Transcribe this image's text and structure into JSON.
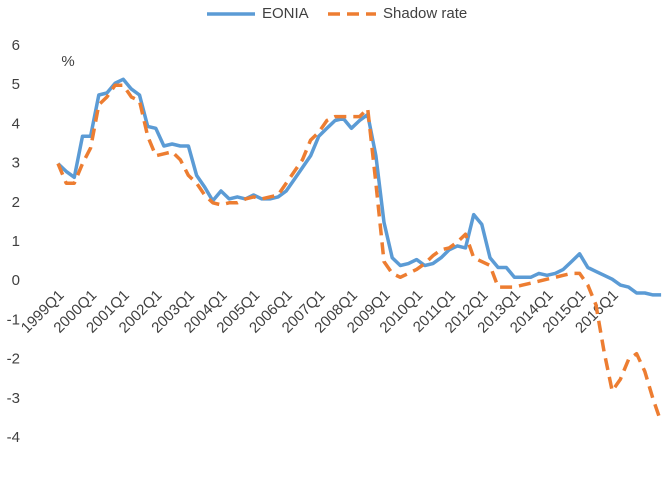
{
  "chart_data": {
    "type": "line",
    "y_axis_label": "%",
    "categories": [
      "1999Q1",
      null,
      null,
      null,
      "2000Q1",
      null,
      null,
      null,
      "2001Q1",
      null,
      null,
      null,
      "2002Q1",
      null,
      null,
      null,
      "2003Q1",
      null,
      null,
      null,
      "2004Q1",
      null,
      null,
      null,
      "2005Q1",
      null,
      null,
      null,
      "2006Q1",
      null,
      null,
      null,
      "2007Q1",
      null,
      null,
      null,
      "2008Q1",
      null,
      null,
      null,
      "2009Q1",
      null,
      null,
      null,
      "2010Q1",
      null,
      null,
      null,
      "2011Q1",
      null,
      null,
      null,
      "2012Q1",
      null,
      null,
      null,
      "2013Q1",
      null,
      null,
      null,
      "2014Q1",
      null,
      null,
      null,
      "2015Q1",
      null,
      null,
      null,
      "2016Q1",
      null,
      null,
      null,
      null,
      null,
      null
    ],
    "series": [
      {
        "name": "EONIA",
        "color": "#5b9bd5",
        "dashed": false,
        "values": [
          3.0,
          2.8,
          2.65,
          3.7,
          3.7,
          4.75,
          4.8,
          5.05,
          5.15,
          4.9,
          4.75,
          3.95,
          3.9,
          3.45,
          3.5,
          3.45,
          3.45,
          2.7,
          2.4,
          2.05,
          2.3,
          2.1,
          2.15,
          2.1,
          2.2,
          2.1,
          2.1,
          2.15,
          2.3,
          2.6,
          2.9,
          3.2,
          3.7,
          3.9,
          4.1,
          4.15,
          3.9,
          4.1,
          4.25,
          3.2,
          1.5,
          0.6,
          0.4,
          0.45,
          0.55,
          0.4,
          0.45,
          0.6,
          0.8,
          0.9,
          0.85,
          1.7,
          1.45,
          0.6,
          0.35,
          0.35,
          0.1,
          0.1,
          0.1,
          0.2,
          0.15,
          0.2,
          0.3,
          0.5,
          0.7,
          0.35,
          0.25,
          0.15,
          0.05,
          -0.1,
          -0.15,
          -0.3,
          -0.3,
          -0.35,
          -0.35
        ]
      },
      {
        "name": "Shadow rate",
        "color": "#ed7d31",
        "dashed": true,
        "values": [
          3.0,
          2.5,
          2.5,
          3.0,
          3.4,
          4.5,
          4.7,
          5.0,
          5.0,
          4.7,
          4.6,
          3.7,
          3.2,
          3.25,
          3.3,
          3.1,
          2.7,
          2.5,
          2.2,
          2.0,
          1.95,
          2.0,
          2.0,
          2.1,
          2.15,
          2.1,
          2.15,
          2.2,
          2.5,
          2.8,
          3.1,
          3.6,
          3.8,
          4.1,
          4.2,
          4.2,
          4.2,
          4.2,
          4.4,
          2.5,
          0.5,
          0.2,
          0.1,
          0.2,
          0.3,
          0.45,
          0.65,
          0.8,
          0.85,
          1.0,
          1.2,
          0.6,
          0.5,
          0.4,
          -0.15,
          -0.15,
          -0.15,
          -0.1,
          -0.05,
          0.0,
          0.05,
          0.1,
          0.15,
          0.2,
          0.2,
          -0.1,
          -0.6,
          -1.8,
          -2.8,
          -2.5,
          -2.0,
          -1.85,
          -2.3,
          -3.0,
          -3.6
        ]
      }
    ],
    "ylim": [
      -4,
      6
    ],
    "yticks": [
      -4,
      -3,
      -2,
      -1,
      0,
      1,
      2,
      3,
      4,
      5,
      6
    ],
    "grid": false,
    "legend": "top"
  }
}
